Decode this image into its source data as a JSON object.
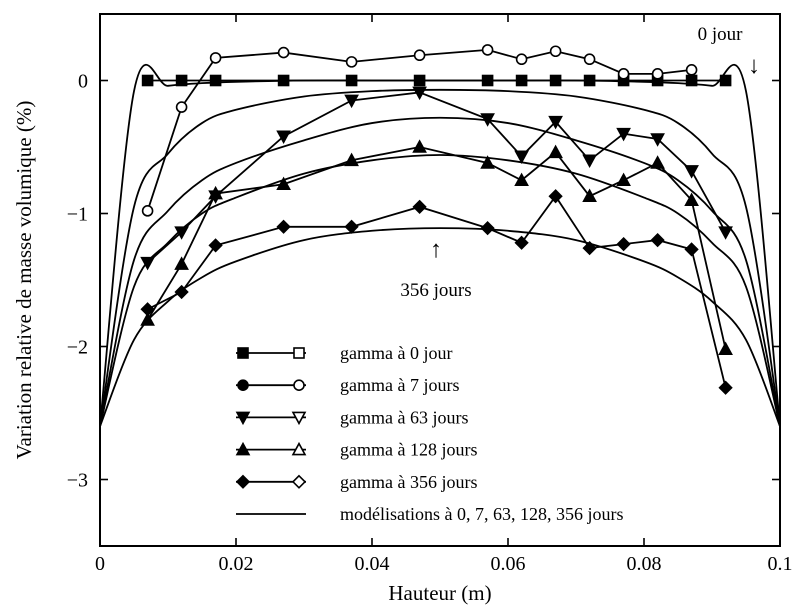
{
  "chart_data": {
    "type": "line",
    "title": "",
    "xlabel": "Hauteur (m)",
    "ylabel": "Variation relative de masse volumique (%)",
    "xlim": [
      0,
      0.1
    ],
    "ylim": [
      -3.5,
      0.5
    ],
    "x_ticks": [
      0,
      0.02,
      0.04,
      0.06,
      0.08,
      0.1
    ],
    "x_tick_labels": [
      "0",
      "0.02",
      "0.04",
      "0.06",
      "0.08",
      "0.1"
    ],
    "y_ticks": [
      0,
      -1,
      -2,
      -3
    ],
    "y_tick_labels": [
      "0",
      "−1",
      "−2",
      "−3"
    ],
    "grid": false,
    "legend_position": "bottom-center",
    "x": [
      0.007,
      0.012,
      0.017,
      0.027,
      0.037,
      0.047,
      0.057,
      0.062,
      0.067,
      0.072,
      0.077,
      0.082,
      0.087,
      0.092
    ],
    "series": [
      {
        "name": "gamma à 0 jour",
        "marker": "square",
        "filled": true,
        "values": [
          0,
          0,
          0,
          0,
          0,
          0,
          0,
          0,
          0,
          0,
          0,
          0,
          0,
          0
        ]
      },
      {
        "name": "gamma à 7 jours",
        "marker": "circle",
        "filled": false,
        "values": [
          -0.98,
          -0.2,
          0.17,
          0.21,
          0.14,
          0.19,
          0.23,
          0.16,
          0.22,
          0.16,
          0.05,
          0.05,
          0.08,
          null
        ]
      },
      {
        "name": "gamma à 63 jours",
        "marker": "triangle-down",
        "filled": true,
        "values": [
          -1.37,
          -1.14,
          -0.87,
          -0.42,
          -0.15,
          -0.09,
          -0.29,
          -0.57,
          -0.31,
          -0.6,
          -0.4,
          -0.44,
          -0.68,
          -1.14
        ]
      },
      {
        "name": "gamma à 128 jours",
        "marker": "triangle-up",
        "filled": true,
        "values": [
          -1.8,
          -1.38,
          -0.85,
          -0.78,
          -0.6,
          -0.5,
          -0.62,
          -0.75,
          -0.54,
          -0.87,
          -0.75,
          -0.62,
          -0.9,
          -2.02
        ]
      },
      {
        "name": "gamma à 356 jours",
        "marker": "diamond",
        "filled": true,
        "values": [
          -1.72,
          -1.59,
          -1.24,
          -1.1,
          -1.1,
          -0.95,
          -1.11,
          -1.22,
          -0.87,
          -1.26,
          -1.23,
          -1.2,
          -1.27,
          -2.31
        ]
      }
    ],
    "model": {
      "name": "modélisations à 0, 7, 63, 128, 356 jours",
      "curves": [
        {
          "x": [
            0,
            0.005,
            0.01,
            0.015,
            0.02,
            0.03,
            0.04,
            0.05,
            0.06,
            0.07,
            0.08,
            0.085,
            0.09,
            0.095,
            0.1
          ],
          "y": [
            -2.6,
            -0.08,
            -0.04,
            -0.02,
            -0.01,
            0,
            0,
            0,
            0,
            0,
            -0.01,
            -0.02,
            -0.04,
            -0.08,
            -2.6
          ]
        },
        {
          "x": [
            0,
            0.005,
            0.01,
            0.015,
            0.02,
            0.03,
            0.04,
            0.05,
            0.06,
            0.07,
            0.08,
            0.085,
            0.09,
            0.095,
            0.1
          ],
          "y": [
            -2.6,
            -0.95,
            -0.55,
            -0.32,
            -0.22,
            -0.12,
            -0.08,
            -0.07,
            -0.08,
            -0.12,
            -0.22,
            -0.32,
            -0.55,
            -0.95,
            -2.6
          ]
        },
        {
          "x": [
            0,
            0.005,
            0.01,
            0.015,
            0.02,
            0.03,
            0.04,
            0.05,
            0.06,
            0.07,
            0.08,
            0.085,
            0.09,
            0.095,
            0.1
          ],
          "y": [
            -2.6,
            -1.35,
            -0.98,
            -0.75,
            -0.62,
            -0.45,
            -0.32,
            -0.28,
            -0.32,
            -0.45,
            -0.62,
            -0.75,
            -0.98,
            -1.35,
            -2.6
          ]
        },
        {
          "x": [
            0,
            0.005,
            0.01,
            0.015,
            0.02,
            0.03,
            0.04,
            0.05,
            0.06,
            0.07,
            0.08,
            0.085,
            0.09,
            0.095,
            0.1
          ],
          "y": [
            -2.6,
            -1.55,
            -1.22,
            -1.0,
            -0.88,
            -0.7,
            -0.6,
            -0.56,
            -0.6,
            -0.7,
            -0.88,
            -1.0,
            -1.22,
            -1.55,
            -2.6
          ]
        },
        {
          "x": [
            0,
            0.005,
            0.01,
            0.015,
            0.02,
            0.03,
            0.04,
            0.05,
            0.06,
            0.07,
            0.08,
            0.085,
            0.09,
            0.095,
            0.1
          ],
          "y": [
            -2.6,
            -1.95,
            -1.66,
            -1.48,
            -1.36,
            -1.2,
            -1.13,
            -1.11,
            -1.13,
            -1.2,
            -1.36,
            -1.48,
            -1.66,
            -1.95,
            -2.6
          ]
        }
      ]
    },
    "annotations": [
      {
        "text": "0 jour",
        "arrow": "↓",
        "x": 0.097,
        "y": 0.25
      },
      {
        "text": "356 jours",
        "arrow": "↑",
        "x": 0.0495,
        "y": -1.55
      }
    ]
  }
}
